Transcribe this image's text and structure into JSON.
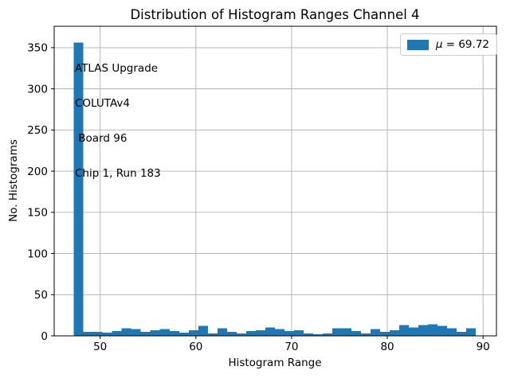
{
  "chart_data": {
    "type": "bar",
    "subtype": "histogram",
    "title": "Distribution of Histogram Ranges Channel 4",
    "xlabel": "Histogram Range",
    "ylabel": "No. Histograms",
    "legend_label": "μ = 69.72",
    "legend_mu": "μ",
    "legend_rest": " = 69.72",
    "legend_position": "upper right",
    "annotation": [
      "ATLAS Upgrade",
      "COLUTAv4",
      " Board 96",
      "Chip 1, Run 183"
    ],
    "bar_color": "#1f77b4",
    "grid_color": "#b0b0b0",
    "grid": true,
    "x_ticks": [
      50,
      60,
      70,
      80,
      90
    ],
    "y_ticks": [
      0,
      50,
      100,
      150,
      200,
      250,
      300,
      350
    ],
    "xlim": [
      45.2,
      91.4
    ],
    "ylim": [
      0,
      376
    ],
    "bin_start": 47.25,
    "bin_width": 1.0,
    "values": [
      356,
      5,
      5,
      4,
      6,
      9,
      8,
      5,
      7,
      8,
      6,
      4,
      7,
      12,
      3,
      9,
      5,
      3,
      6,
      7,
      10,
      8,
      6,
      7,
      3,
      2,
      3,
      9,
      9,
      6,
      3,
      8,
      5,
      7,
      13,
      10,
      13,
      14,
      12,
      9,
      5,
      9
    ]
  }
}
